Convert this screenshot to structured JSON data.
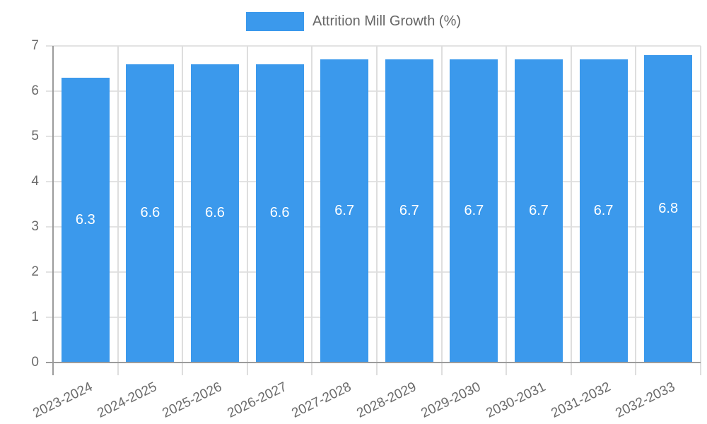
{
  "chart_data": {
    "type": "bar",
    "title": "Attrition Mill Growth (%)",
    "categories": [
      "2023-2024",
      "2024-2025",
      "2025-2026",
      "2026-2027",
      "2027-2028",
      "2028-2029",
      "2029-2030",
      "2030-2031",
      "2031-2032",
      "2032-2033"
    ],
    "values": [
      6.3,
      6.6,
      6.6,
      6.6,
      6.7,
      6.7,
      6.7,
      6.7,
      6.7,
      6.8
    ],
    "bar_labels": [
      "6.3",
      "6.6",
      "6.6",
      "6.6",
      "6.7",
      "6.7",
      "6.7",
      "6.7",
      "6.7",
      "6.8"
    ],
    "xlabel": "",
    "ylabel": "",
    "ylim": [
      0,
      7
    ],
    "yticks": [
      0,
      1,
      2,
      3,
      4,
      5,
      6,
      7
    ],
    "grid": true,
    "legend_position": "top"
  },
  "colors": {
    "bar": "#3b99ec",
    "bar_label": "#ffffff",
    "gridline": "#e3e3e3",
    "axis_line": "#9b9b9b",
    "tick_text": "#6b6b6b",
    "legend_text": "#666666",
    "background": "#ffffff"
  }
}
